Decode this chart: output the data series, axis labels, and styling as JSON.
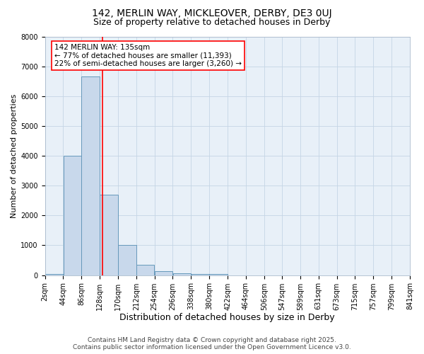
{
  "title1": "142, MERLIN WAY, MICKLEOVER, DERBY, DE3 0UJ",
  "title2": "Size of property relative to detached houses in Derby",
  "xlabel": "Distribution of detached houses by size in Derby",
  "ylabel": "Number of detached properties",
  "bin_edges": [
    2,
    44,
    86,
    128,
    170,
    212,
    254,
    296,
    338,
    380,
    422,
    464,
    506,
    547,
    589,
    631,
    673,
    715,
    757,
    799,
    841
  ],
  "bar_heights": [
    50,
    4000,
    6650,
    2700,
    1000,
    340,
    130,
    70,
    50,
    50,
    0,
    0,
    0,
    0,
    0,
    0,
    0,
    0,
    0,
    0
  ],
  "bar_color": "#c8d8eb",
  "bar_edgecolor": "#6699bb",
  "property_size": 135,
  "vline_color": "red",
  "annotation_line1": "142 MERLIN WAY: 135sqm",
  "annotation_line2": "← 77% of detached houses are smaller (11,393)",
  "annotation_line3": "22% of semi-detached houses are larger (3,260) →",
  "annotation_box_edgecolor": "red",
  "annotation_box_facecolor": "white",
  "ylim": [
    0,
    8000
  ],
  "yticks": [
    0,
    1000,
    2000,
    3000,
    4000,
    5000,
    6000,
    7000,
    8000
  ],
  "grid_color": "#c5d5e5",
  "background_color": "#dde8f0",
  "plot_bg_color": "#e8f0f8",
  "footer_line1": "Contains HM Land Registry data © Crown copyright and database right 2025.",
  "footer_line2": "Contains public sector information licensed under the Open Government Licence v3.0.",
  "title1_fontsize": 10,
  "title2_fontsize": 9,
  "xlabel_fontsize": 9,
  "ylabel_fontsize": 8,
  "tick_fontsize": 7,
  "footer_fontsize": 6.5,
  "annotation_fontsize": 7.5
}
